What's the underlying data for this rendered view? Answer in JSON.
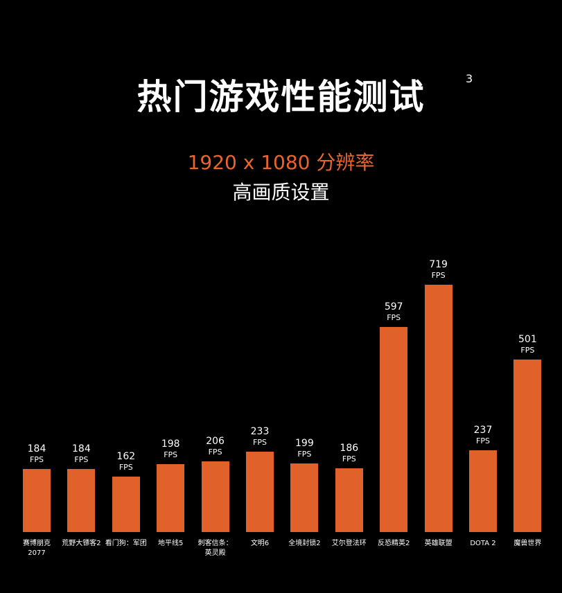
{
  "chart_data": {
    "type": "bar",
    "title": "热门游戏性能测试",
    "title_superscript": "3",
    "subtitle": "1920 x 1080 分辨率",
    "subtitle2": "高画质设置",
    "unit_label": "FPS",
    "color": "#e0622a",
    "categories": [
      "赛博朋克\n2077",
      "荒野大镖客2",
      "看门狗：军团",
      "地平线5",
      "刺客信条：\n英灵殿",
      "文明6",
      "全境封锁2",
      "艾尔登法环",
      "反恐精英2",
      "英雄联盟",
      "DOTA 2",
      "魔兽世界"
    ],
    "values": [
      184,
      184,
      162,
      198,
      206,
      233,
      199,
      186,
      597,
      719,
      237,
      501
    ]
  }
}
